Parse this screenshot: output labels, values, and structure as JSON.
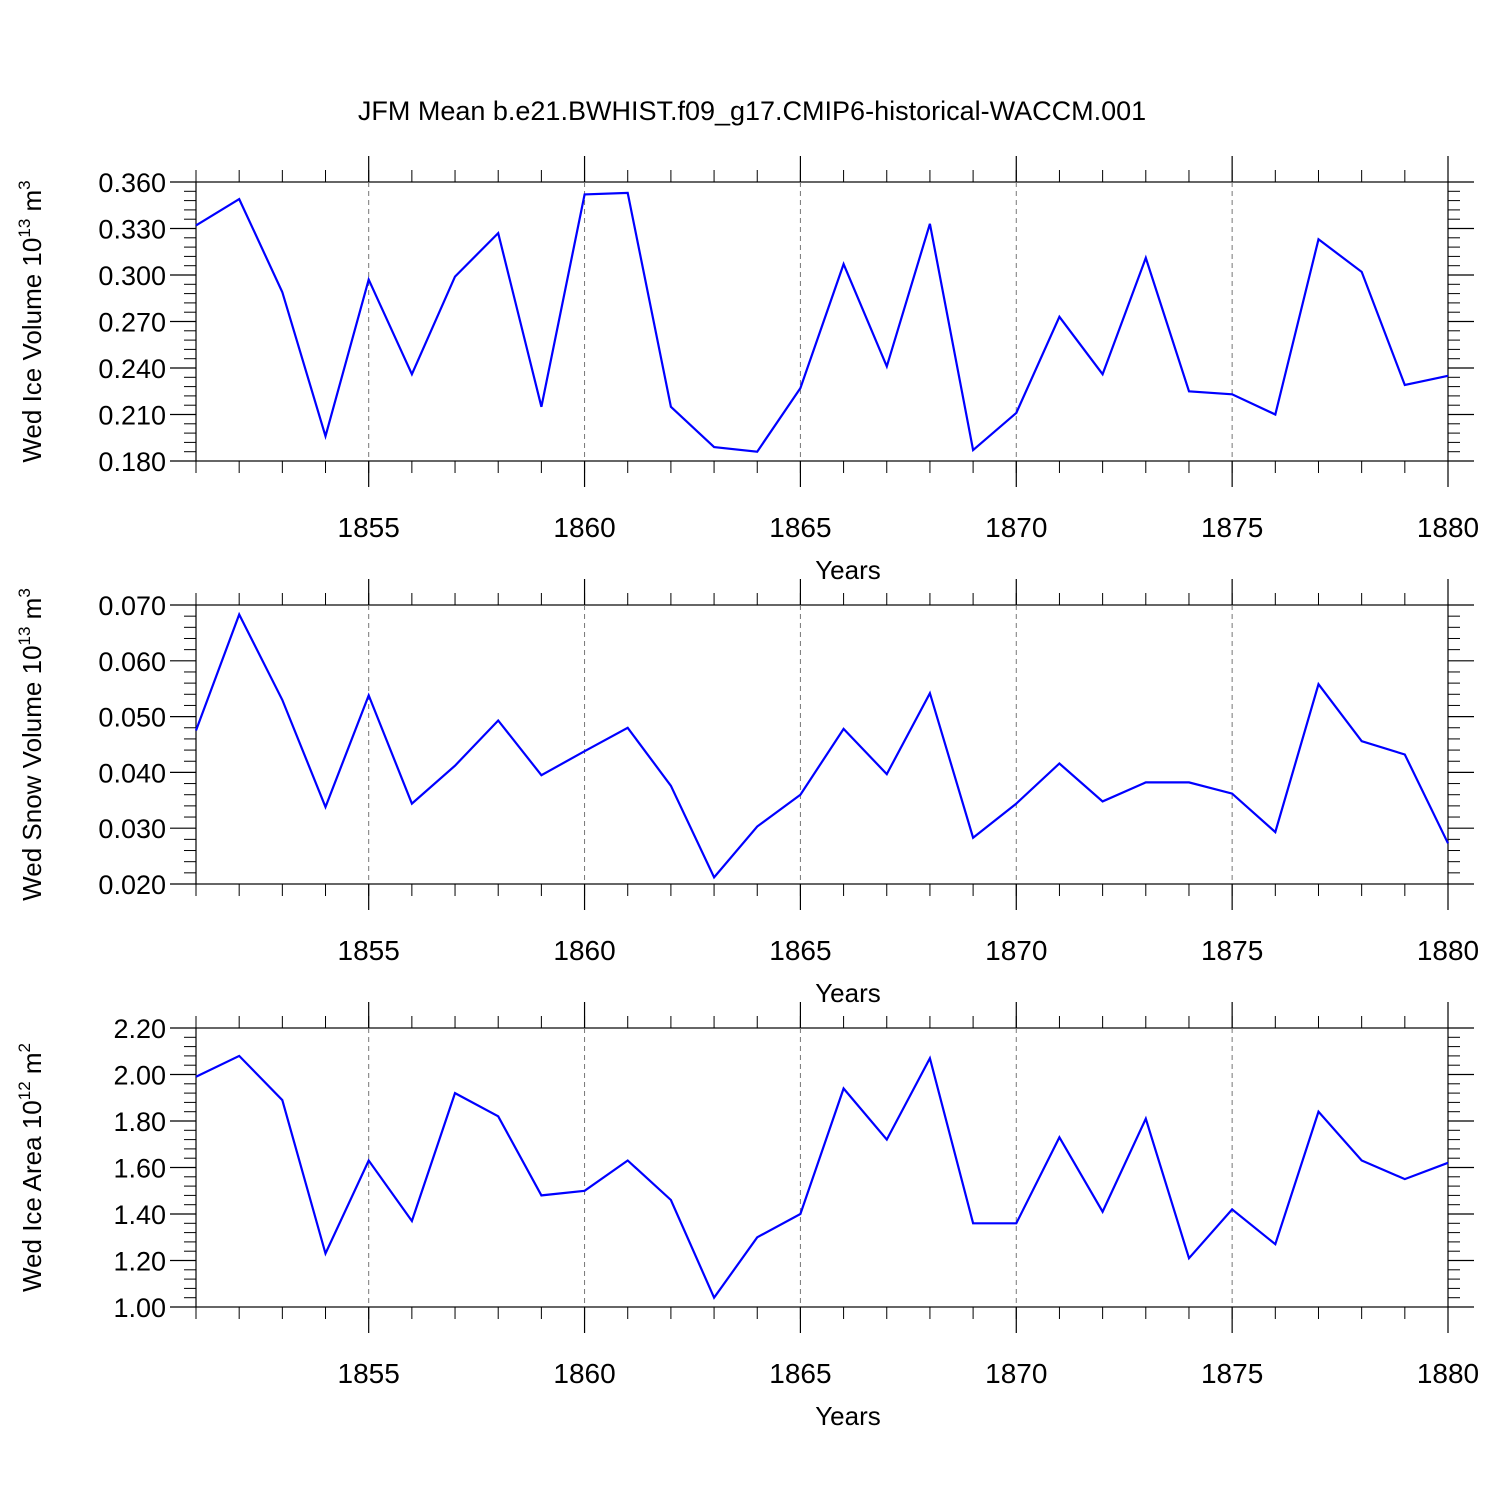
{
  "title": "JFM Mean b.e21.BWHIST.f09_g17.CMIP6-historical-WACCM.001",
  "chart_data": [
    {
      "type": "line",
      "ylabel": "Wed Ice Volume 10",
      "ylabel_sup": "13",
      "ylabel_unit": " m",
      "ylabel_unit_sup": "3",
      "xlabel": "Years",
      "xlim": [
        1851,
        1880
      ],
      "ylim": [
        0.18,
        0.36
      ],
      "yticks": [
        "0.180",
        "0.210",
        "0.240",
        "0.270",
        "0.300",
        "0.330",
        "0.360"
      ],
      "xticks": [
        "1855",
        "1860",
        "1865",
        "1870",
        "1875",
        "1880"
      ],
      "color": "#0000ff",
      "x": [
        1851,
        1852,
        1853,
        1854,
        1855,
        1856,
        1857,
        1858,
        1859,
        1860,
        1861,
        1862,
        1863,
        1864,
        1865,
        1866,
        1867,
        1868,
        1869,
        1870,
        1871,
        1872,
        1873,
        1874,
        1875,
        1876,
        1877,
        1878,
        1879,
        1880
      ],
      "values": [
        0.332,
        0.349,
        0.289,
        0.196,
        0.297,
        0.236,
        0.299,
        0.327,
        0.215,
        0.352,
        0.353,
        0.215,
        0.189,
        0.186,
        0.227,
        0.307,
        0.241,
        0.333,
        0.187,
        0.211,
        0.273,
        0.236,
        0.311,
        0.225,
        0.223,
        0.21,
        0.323,
        0.302,
        0.229,
        0.235
      ]
    },
    {
      "type": "line",
      "ylabel": "Wed Snow Volume 10",
      "ylabel_sup": "13",
      "ylabel_unit": " m",
      "ylabel_unit_sup": "3",
      "xlabel": "Years",
      "xlim": [
        1851,
        1880
      ],
      "ylim": [
        0.02,
        0.07
      ],
      "yticks": [
        "0.020",
        "0.030",
        "0.040",
        "0.050",
        "0.060",
        "0.070"
      ],
      "xticks": [
        "1855",
        "1860",
        "1865",
        "1870",
        "1875",
        "1880"
      ],
      "color": "#0000ff",
      "x": [
        1851,
        1852,
        1853,
        1854,
        1855,
        1856,
        1857,
        1858,
        1859,
        1860,
        1861,
        1862,
        1863,
        1864,
        1865,
        1866,
        1867,
        1868,
        1869,
        1870,
        1871,
        1872,
        1873,
        1874,
        1875,
        1876,
        1877,
        1878,
        1879,
        1880
      ],
      "values": [
        0.0475,
        0.0683,
        0.053,
        0.0338,
        0.0538,
        0.0344,
        0.0412,
        0.0493,
        0.0395,
        0.0438,
        0.048,
        0.0376,
        0.0212,
        0.0303,
        0.036,
        0.0478,
        0.0397,
        0.0542,
        0.0283,
        0.0344,
        0.0416,
        0.0348,
        0.0382,
        0.0382,
        0.0362,
        0.0293,
        0.0558,
        0.0456,
        0.0432,
        0.0273
      ]
    },
    {
      "type": "line",
      "ylabel": "Wed Ice Area 10",
      "ylabel_sup": "12",
      "ylabel_unit": " m",
      "ylabel_unit_sup": "2",
      "xlabel": "Years",
      "xlim": [
        1851,
        1880
      ],
      "ylim": [
        1.0,
        2.2
      ],
      "yticks": [
        "1.00",
        "1.20",
        "1.40",
        "1.60",
        "1.80",
        "2.00",
        "2.20"
      ],
      "xticks": [
        "1855",
        "1860",
        "1865",
        "1870",
        "1875",
        "1880"
      ],
      "color": "#0000ff",
      "x": [
        1851,
        1852,
        1853,
        1854,
        1855,
        1856,
        1857,
        1858,
        1859,
        1860,
        1861,
        1862,
        1863,
        1864,
        1865,
        1866,
        1867,
        1868,
        1869,
        1870,
        1871,
        1872,
        1873,
        1874,
        1875,
        1876,
        1877,
        1878,
        1879,
        1880
      ],
      "values": [
        1.99,
        2.08,
        1.89,
        1.23,
        1.63,
        1.37,
        1.92,
        1.82,
        1.48,
        1.5,
        1.63,
        1.46,
        1.04,
        1.3,
        1.4,
        1.94,
        1.72,
        2.07,
        1.36,
        1.36,
        1.73,
        1.41,
        1.81,
        1.21,
        1.42,
        1.27,
        1.84,
        1.63,
        1.55,
        1.62
      ]
    }
  ]
}
